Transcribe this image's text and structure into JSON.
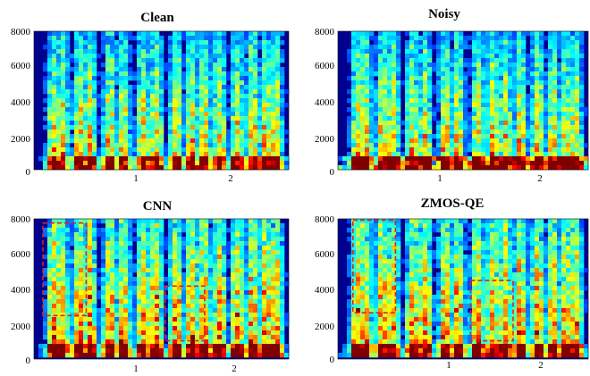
{
  "chart_data": [
    {
      "type": "heatmap",
      "title": "Clean",
      "y_ticks": [
        "0",
        "2000",
        "4000",
        "6000",
        "8000"
      ],
      "x_ticks": [
        "1",
        "2"
      ],
      "ylim": [
        0,
        8000
      ],
      "colormap": "jet",
      "annotations": []
    },
    {
      "type": "heatmap",
      "title": "Noisy",
      "y_ticks": [
        "0",
        "2000",
        "4000",
        "6000",
        "8000"
      ],
      "x_ticks": [
        "1",
        "2"
      ],
      "ylim": [
        0,
        8000
      ],
      "colormap": "jet",
      "annotations": []
    },
    {
      "type": "heatmap",
      "title": "CNN",
      "y_ticks": [
        "0",
        "2000",
        "4000",
        "6000",
        "8000"
      ],
      "x_ticks": [
        "1",
        "2"
      ],
      "ylim": [
        0,
        8000
      ],
      "colormap": "jet",
      "annotations": [
        "dashed-box",
        "dashed-box"
      ]
    },
    {
      "type": "heatmap",
      "title": "ZMOS-QE",
      "y_ticks": [
        "0",
        "2000",
        "4000",
        "6000",
        "8000"
      ],
      "x_ticks": [
        "1",
        "2"
      ],
      "ylim": [
        0,
        8000
      ],
      "colormap": "jet",
      "annotations": [
        "dashed-box",
        "dashed-box"
      ]
    }
  ],
  "colors": {
    "background": "#00008f",
    "annotation": "#e02020"
  }
}
